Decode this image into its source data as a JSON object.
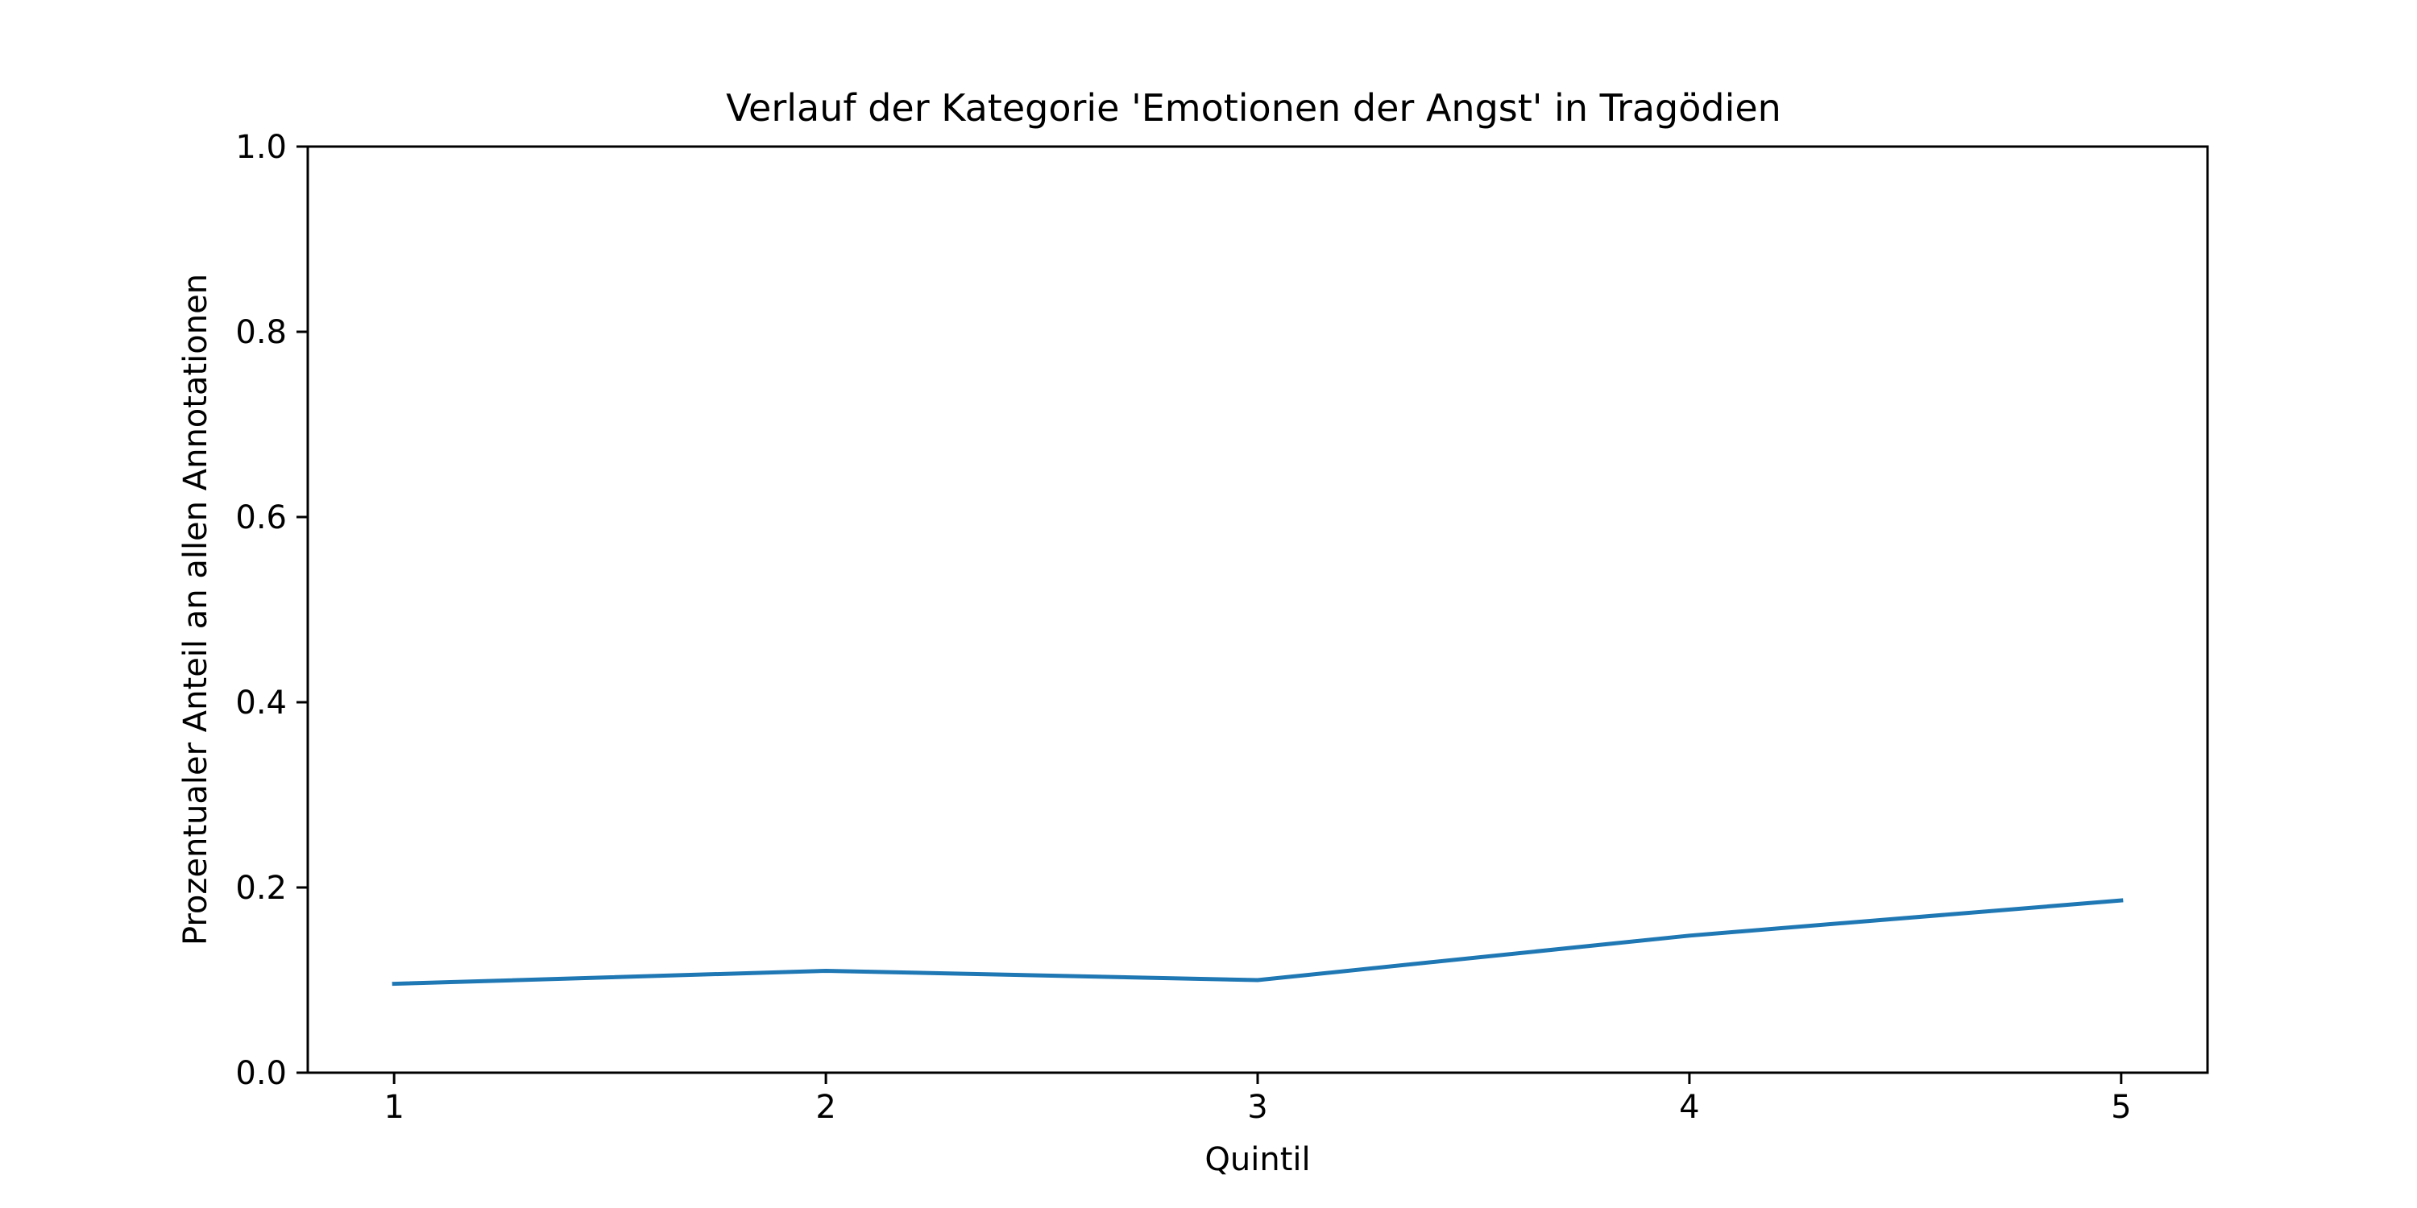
{
  "chart_data": {
    "type": "line",
    "title": "Verlauf der Kategorie 'Emotionen der Angst' in Tragödien",
    "xlabel": "Quintil",
    "ylabel": "Prozentualer Anteil an allen Annotationen",
    "x": [
      1,
      2,
      3,
      4,
      5
    ],
    "x_tick_labels": [
      "1",
      "2",
      "3",
      "4",
      "5"
    ],
    "xlim": [
      0.8,
      5.2
    ],
    "ylim": [
      0.0,
      1.0
    ],
    "y_ticks": [
      0.0,
      0.2,
      0.4,
      0.6,
      0.8,
      1.0
    ],
    "y_tick_labels": [
      "0.0",
      "0.2",
      "0.4",
      "0.6",
      "0.8",
      "1.0"
    ],
    "grid": false,
    "series": [
      {
        "values": [
          0.096,
          0.11,
          0.1,
          0.148,
          0.186
        ],
        "color": "#1f77b4"
      }
    ]
  }
}
